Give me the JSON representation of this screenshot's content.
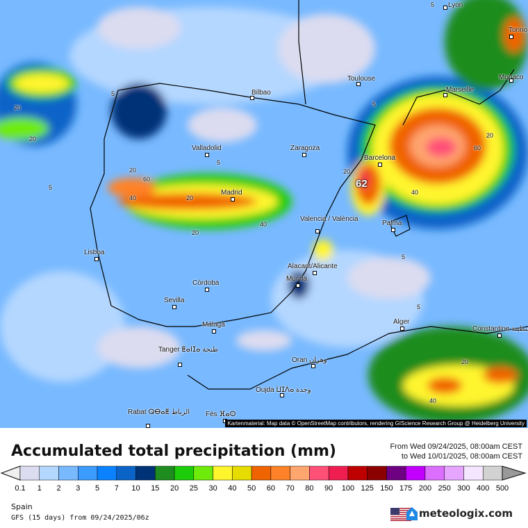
{
  "map": {
    "attribution": "Kartenmaterial: Map data © OpenStreetMap contributors, rendering GIScience Research Group @ Heidelberg University",
    "cities": [
      {
        "name": "Lyon"
      },
      {
        "name": "Torino"
      },
      {
        "name": "Monaco"
      },
      {
        "name": "Bilbao"
      },
      {
        "name": "Toulouse"
      },
      {
        "name": "Marseille"
      },
      {
        "name": "Valladolid"
      },
      {
        "name": "Zaragoza"
      },
      {
        "name": "Barcelona"
      },
      {
        "name": "Madrid"
      },
      {
        "name": "Valencia / València"
      },
      {
        "name": "Palma"
      },
      {
        "name": "Lisboa"
      },
      {
        "name": "Alacant/Alicante"
      },
      {
        "name": "Murcia"
      },
      {
        "name": "Córdoba"
      },
      {
        "name": "Sevilla"
      },
      {
        "name": "Málaga"
      },
      {
        "name": "Alger"
      },
      {
        "name": "Constantine قسنطينة"
      },
      {
        "name": "Tanger ⵟⴰⵏⵊⴰ طنجة"
      },
      {
        "name": "Oran وهران"
      },
      {
        "name": "Oujda ⵡⵊⴷⴰ وجدة"
      },
      {
        "name": "Rabat ⵕⴱⴰⵟ الرباط"
      },
      {
        "name": "Fès ⴼⴰⵙ"
      }
    ],
    "contour_labels": [
      "5",
      "20",
      "20",
      "5",
      "60",
      "40",
      "20",
      "20",
      "40",
      "20",
      "5",
      "20",
      "62",
      "40",
      "60",
      "20",
      "5",
      "5",
      "5",
      "20",
      "40",
      "5"
    ],
    "max_value_label": "62"
  },
  "title": "Accumulated total precipitation (mm)",
  "period": {
    "from": "From Wed 09/24/2025, 08:00am CEST",
    "to": "to Wed 10/01/2025, 08:00am CEST"
  },
  "legend": {
    "colors": [
      "#dcdcf0",
      "#b4d7ff",
      "#78b9ff",
      "#3c9bff",
      "#0a82ff",
      "#0a64c8",
      "#003278",
      "#1e8c1e",
      "#1ecd0a",
      "#6eeb0a",
      "#fff52d",
      "#e6dc00",
      "#f06400",
      "#ff8228",
      "#ffa56e",
      "#ff5078",
      "#f01e50",
      "#be0000",
      "#8c0000",
      "#6e0082",
      "#c300ff",
      "#dc6eff",
      "#e6a5ff",
      "#f5e6ff",
      "#d2d2d2"
    ],
    "under_color": "#f0f0f0",
    "over_color": "#999999",
    "ticks": [
      "0.1",
      "1",
      "2",
      "3",
      "5",
      "7",
      "10",
      "15",
      "20",
      "25",
      "30",
      "40",
      "50",
      "60",
      "70",
      "80",
      "90",
      "100",
      "125",
      "150",
      "175",
      "200",
      "250",
      "300",
      "400",
      "500"
    ]
  },
  "footer": {
    "region": "Spain",
    "model": "GFS (15 days) from  09/24/2025/06z",
    "brand": "meteologix.com"
  }
}
